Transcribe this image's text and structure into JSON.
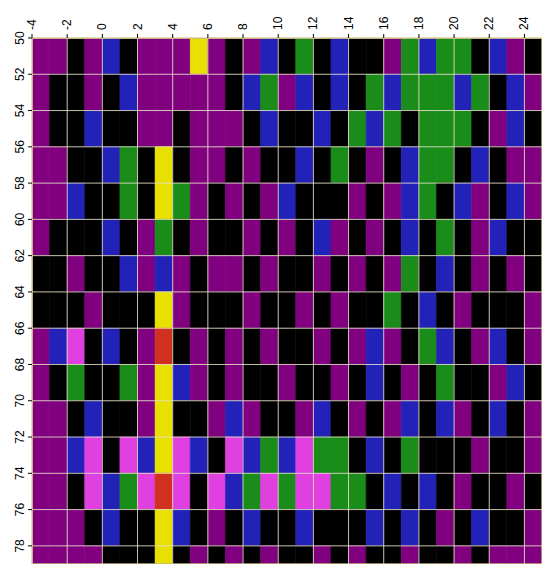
{
  "chart_data": {
    "type": "heatmap",
    "xlim": [
      -4,
      25
    ],
    "ylim": [
      50,
      79
    ],
    "xticks": [
      -4,
      -2,
      0,
      2,
      4,
      6,
      8,
      10,
      12,
      14,
      16,
      18,
      20,
      22,
      24
    ],
    "yticks": [
      50,
      52,
      54,
      56,
      58,
      60,
      62,
      64,
      66,
      68,
      70,
      72,
      74,
      76,
      78
    ],
    "grid": true,
    "x_bins": [
      -4,
      -3,
      -2,
      -1,
      0,
      1,
      2,
      3,
      4,
      5,
      6,
      7,
      8,
      9,
      10,
      11,
      12,
      13,
      14,
      15,
      16,
      17,
      18,
      19,
      20,
      21,
      22,
      23,
      24,
      25
    ],
    "y_bins": [
      50,
      52,
      54,
      56,
      58,
      60,
      62,
      64,
      66,
      68,
      70,
      72,
      74,
      76,
      78,
      79
    ],
    "colors": [
      "#800080",
      "#000000",
      "#2222b8",
      "#1a8c1a",
      "#e040e0",
      "#e8e000",
      "#d03020"
    ],
    "cells": [
      [
        0,
        0,
        1,
        0,
        2,
        1,
        0,
        0,
        0,
        5,
        0,
        1,
        0,
        2,
        1,
        3,
        1,
        2,
        1,
        1,
        0,
        3,
        2,
        3,
        3,
        1,
        2,
        0,
        1
      ],
      [
        0,
        1,
        1,
        0,
        1,
        2,
        0,
        0,
        0,
        0,
        0,
        1,
        2,
        3,
        0,
        2,
        1,
        2,
        1,
        3,
        2,
        3,
        3,
        3,
        2,
        3,
        1,
        2,
        0
      ],
      [
        0,
        1,
        1,
        2,
        1,
        1,
        0,
        0,
        1,
        0,
        0,
        0,
        1,
        2,
        1,
        1,
        2,
        1,
        3,
        2,
        3,
        1,
        3,
        3,
        3,
        1,
        0,
        2,
        1
      ],
      [
        0,
        0,
        1,
        1,
        2,
        3,
        1,
        5,
        1,
        0,
        0,
        1,
        0,
        1,
        1,
        2,
        1,
        3,
        1,
        0,
        1,
        2,
        3,
        3,
        1,
        2,
        1,
        0,
        0
      ],
      [
        0,
        0,
        2,
        1,
        1,
        3,
        1,
        5,
        3,
        0,
        1,
        0,
        1,
        0,
        2,
        1,
        1,
        1,
        0,
        1,
        0,
        2,
        3,
        1,
        2,
        0,
        1,
        2,
        0
      ],
      [
        0,
        1,
        1,
        1,
        2,
        1,
        0,
        3,
        1,
        0,
        1,
        1,
        0,
        1,
        0,
        1,
        2,
        0,
        1,
        0,
        1,
        2,
        1,
        3,
        1,
        0,
        2,
        1,
        1
      ],
      [
        1,
        1,
        0,
        1,
        1,
        2,
        0,
        2,
        0,
        1,
        0,
        0,
        1,
        0,
        1,
        1,
        0,
        1,
        0,
        1,
        0,
        3,
        1,
        2,
        1,
        0,
        1,
        0,
        1
      ],
      [
        1,
        1,
        1,
        0,
        1,
        1,
        1,
        5,
        0,
        1,
        1,
        1,
        0,
        1,
        1,
        0,
        1,
        0,
        1,
        1,
        3,
        1,
        2,
        1,
        0,
        1,
        1,
        1,
        0
      ],
      [
        0,
        2,
        4,
        1,
        2,
        1,
        0,
        6,
        1,
        0,
        1,
        0,
        1,
        0,
        1,
        1,
        0,
        1,
        0,
        2,
        0,
        1,
        3,
        2,
        1,
        0,
        2,
        1,
        0
      ],
      [
        0,
        1,
        3,
        1,
        1,
        3,
        0,
        5,
        2,
        0,
        1,
        0,
        1,
        1,
        0,
        1,
        1,
        0,
        1,
        2,
        1,
        0,
        1,
        3,
        1,
        1,
        0,
        2,
        1
      ],
      [
        0,
        0,
        1,
        2,
        1,
        1,
        0,
        5,
        1,
        1,
        0,
        2,
        0,
        1,
        1,
        0,
        2,
        1,
        0,
        1,
        0,
        2,
        1,
        2,
        0,
        1,
        2,
        1,
        0
      ],
      [
        0,
        0,
        2,
        4,
        1,
        4,
        2,
        5,
        4,
        2,
        1,
        4,
        2,
        3,
        2,
        4,
        3,
        3,
        1,
        2,
        1,
        3,
        1,
        1,
        1,
        0,
        1,
        1,
        0
      ],
      [
        0,
        0,
        1,
        4,
        2,
        3,
        4,
        6,
        4,
        1,
        4,
        2,
        3,
        4,
        3,
        4,
        4,
        3,
        3,
        1,
        2,
        1,
        2,
        1,
        0,
        1,
        1,
        0,
        1
      ],
      [
        0,
        0,
        0,
        1,
        2,
        1,
        1,
        5,
        2,
        1,
        0,
        1,
        2,
        1,
        1,
        2,
        1,
        1,
        1,
        2,
        1,
        2,
        1,
        0,
        1,
        2,
        1,
        1,
        0
      ],
      [
        0,
        0,
        0,
        0,
        1,
        1,
        1,
        5,
        1,
        0,
        1,
        0,
        1,
        0,
        1,
        1,
        0,
        1,
        0,
        1,
        1,
        0,
        1,
        1,
        0,
        1,
        0,
        0,
        0
      ]
    ]
  }
}
